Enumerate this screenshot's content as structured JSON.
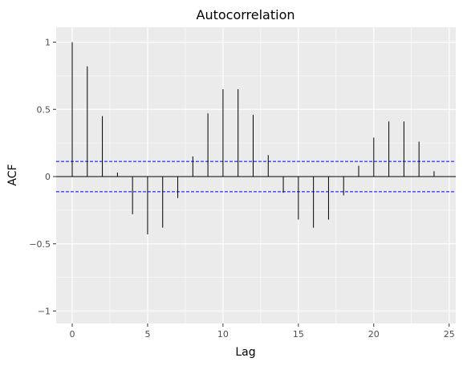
{
  "chart_data": {
    "type": "bar",
    "title": "Autocorrelation",
    "xlabel": "Lag",
    "ylabel": "ACF",
    "xlim": [
      -1.2,
      25.2
    ],
    "ylim": [
      -1.1,
      1.1
    ],
    "x_ticks": [
      0,
      5,
      10,
      15,
      20,
      25
    ],
    "y_ticks": [
      -1,
      -0.5,
      0,
      0.5,
      1
    ],
    "x_tick_labels": [
      "0",
      "5",
      "10",
      "15",
      "20",
      "25"
    ],
    "y_tick_labels": [
      "−1",
      "−0.5",
      "0",
      "0.5",
      "1"
    ],
    "grid": true,
    "lags": [
      0,
      1,
      2,
      3,
      4,
      5,
      6,
      7,
      8,
      9,
      10,
      11,
      12,
      13,
      14,
      15,
      16,
      17,
      18,
      19,
      20,
      21,
      22,
      23,
      24
    ],
    "acf": [
      1.0,
      0.82,
      0.45,
      0.03,
      -0.28,
      -0.43,
      -0.38,
      -0.16,
      0.15,
      0.47,
      0.65,
      0.65,
      0.46,
      0.16,
      -0.12,
      -0.32,
      -0.38,
      -0.32,
      -0.14,
      0.08,
      0.29,
      0.41,
      0.41,
      0.26,
      0.04
    ],
    "confidence_bounds": [
      0.113,
      -0.113
    ],
    "colors": {
      "panel": "#ebebeb",
      "grid": "#ffffff",
      "stem": "#000000",
      "zero_line": "#000000",
      "bounds": "#0000ff"
    }
  }
}
